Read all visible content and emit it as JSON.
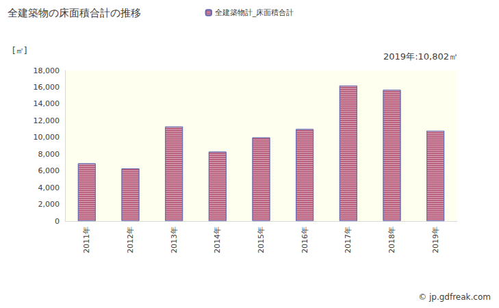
{
  "chart_data": {
    "type": "bar",
    "title": "全建築物の床面積合計の推移",
    "y_label": "[㎡]",
    "annotations": [
      "2019年:10,802㎡",
      "© jp.gdfreak.com"
    ],
    "categories": [
      "2011年",
      "2012年",
      "2013年",
      "2014年",
      "2015年",
      "2016年",
      "2017年",
      "2018年",
      "2019年"
    ],
    "series": [
      {
        "name": "全建築物計_床面積合計",
        "color": "#b8607e",
        "values": [
          6900,
          6300,
          11300,
          8300,
          10000,
          11000,
          16200,
          15700,
          10802
        ]
      }
    ],
    "ylim": [
      0,
      18000
    ],
    "yticks": [
      0,
      {
        "value": 2000,
        "label": "2,000"
      },
      {
        "value": 4000,
        "label": "4,000"
      },
      {
        "value": 6000,
        "label": "6,000"
      },
      {
        "value": 8000,
        "label": "8,000"
      },
      {
        "value": 10000,
        "label": "10,000"
      },
      {
        "value": 12000,
        "label": "12,000"
      },
      {
        "value": 14000,
        "label": "14,000"
      },
      {
        "value": 16000,
        "label": "16,000"
      },
      {
        "value": 18000,
        "label": "18,000"
      }
    ],
    "grid": false,
    "legend": "top"
  }
}
